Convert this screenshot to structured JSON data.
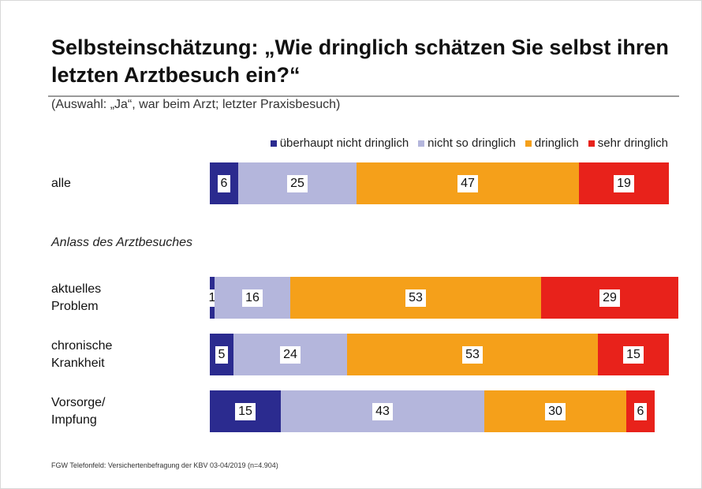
{
  "chart_data": {
    "type": "stacked-bar-horizontal",
    "title": "Selbsteinschätzung: „Wie dringlich schätzen Sie selbst ihren letzten Arztbesuch ein?“",
    "subtitle": "(Auswahl: „Ja“, war beim Arzt; letzter Praxisbesuch)",
    "section_label": "Anlass des Arztbesuches",
    "source": "FGW Telefonfeld: Versichertenbefragung der KBV 03-04/2019 (n=4.904)",
    "categories": [
      "alle",
      "aktuelles Problem",
      "chronische Krankheit",
      "Vorsorge/ Impfung"
    ],
    "xlim": [
      0,
      100
    ],
    "series": [
      {
        "name": "überhaupt nicht dringlich",
        "color": "#2b2b8f",
        "values": [
          6,
          1,
          5,
          15
        ]
      },
      {
        "name": "nicht so dringlich",
        "color": "#b4b6dc",
        "values": [
          25,
          16,
          24,
          43
        ]
      },
      {
        "name": "dringlich",
        "color": "#f5a01a",
        "values": [
          47,
          53,
          53,
          30
        ]
      },
      {
        "name": "sehr dringlich",
        "color": "#e8221b",
        "values": [
          19,
          29,
          15,
          6
        ]
      }
    ]
  }
}
